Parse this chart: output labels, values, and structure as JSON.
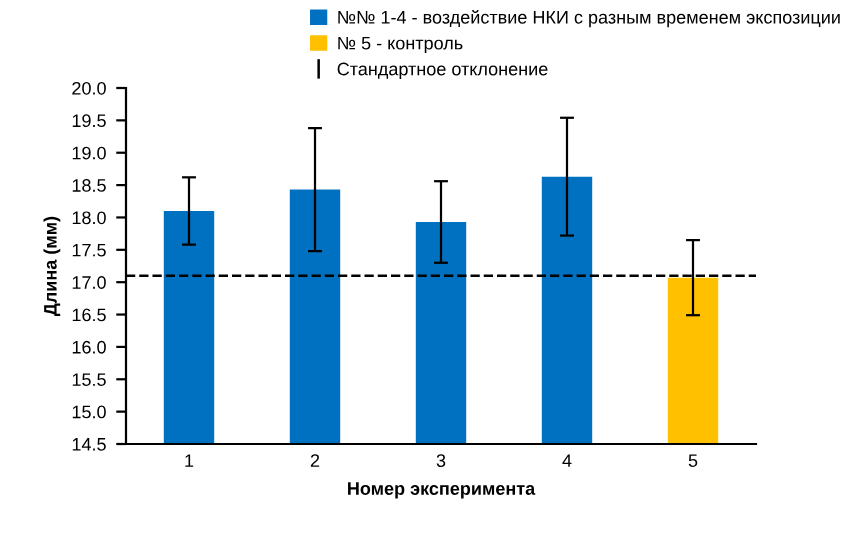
{
  "chart_data": {
    "type": "bar",
    "xlabel": "Номер эксперимента",
    "ylabel": "Длина (мм)",
    "categories": [
      "1",
      "2",
      "3",
      "4",
      "5"
    ],
    "series": [
      {
        "name": "№№ 1-4 - воздействие НКИ с разным временем экспозиции",
        "color": "#0070c0",
        "values": [
          18.1,
          18.43,
          17.93,
          18.63,
          null
        ],
        "errors": [
          0.52,
          0.95,
          0.63,
          0.91,
          null
        ]
      },
      {
        "name": "№ 5 - контроль",
        "color": "#ffc000",
        "values": [
          null,
          null,
          null,
          null,
          17.07
        ],
        "errors": [
          null,
          null,
          null,
          null,
          0.58
        ]
      }
    ],
    "annotations": [
      "Стандартное отклонение"
    ],
    "ref_lines": [
      {
        "axis": "y",
        "value": 17.1,
        "color": "#000000",
        "line_style": "dashed"
      }
    ],
    "ylim": [
      14.5,
      20.0
    ],
    "yticks": [
      {
        "value": 14.5,
        "label": "14.5"
      },
      {
        "value": 15.0,
        "label": "15.0"
      },
      {
        "value": 15.5,
        "label": "15.5"
      },
      {
        "value": 16.0,
        "label": "16.0"
      },
      {
        "value": 16.5,
        "label": "16.5"
      },
      {
        "value": 17.0,
        "label": "17.0"
      },
      {
        "value": 17.5,
        "label": "17.5"
      },
      {
        "value": 18.0,
        "label": "18.0"
      },
      {
        "value": 18.5,
        "label": "18.5"
      },
      {
        "value": 19.0,
        "label": "19.0"
      },
      {
        "value": 19.5,
        "label": "19.5"
      },
      {
        "value": 20.0,
        "label": "20.0"
      }
    ],
    "grid": false,
    "legend": "top"
  }
}
